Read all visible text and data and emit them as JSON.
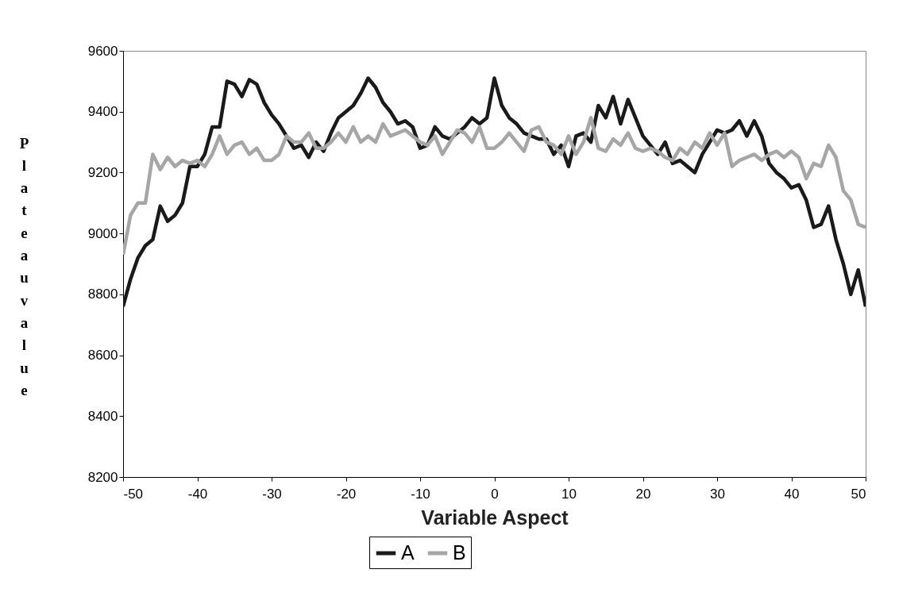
{
  "chart_data": {
    "type": "line",
    "xlabel": "Variable Aspect",
    "ylabel": "Plateau value",
    "xlim": [
      -50,
      50
    ],
    "xticks": [
      -50,
      -40,
      -30,
      -20,
      -10,
      0,
      10,
      20,
      30,
      40,
      50
    ],
    "ylim": [
      8200,
      9600
    ],
    "yticks": [
      8200,
      8400,
      8600,
      8800,
      9000,
      9200,
      9400,
      9600
    ],
    "grid": false,
    "legend": "bottom",
    "marker": "none",
    "line_style": "solid",
    "x": [
      -50,
      -49,
      -48,
      -47,
      -46,
      -45,
      -44,
      -43,
      -42,
      -41,
      -40,
      -39,
      -38,
      -37,
      -36,
      -35,
      -34,
      -33,
      -32,
      -31,
      -30,
      -29,
      -28,
      -27,
      -26,
      -25,
      -24,
      -23,
      -22,
      -21,
      -20,
      -19,
      -18,
      -17,
      -16,
      -15,
      -14,
      -13,
      -12,
      -11,
      -10,
      -9,
      -8,
      -7,
      -6,
      -5,
      -4,
      -3,
      -2,
      -1,
      0,
      1,
      2,
      3,
      4,
      5,
      6,
      7,
      8,
      9,
      10,
      11,
      12,
      13,
      14,
      15,
      16,
      17,
      18,
      19,
      20,
      21,
      22,
      23,
      24,
      25,
      26,
      27,
      28,
      29,
      30,
      31,
      32,
      33,
      34,
      35,
      36,
      37,
      38,
      39,
      40,
      41,
      42,
      43,
      44,
      45,
      46,
      47,
      48,
      49,
      50
    ],
    "series": [
      {
        "name": "A",
        "color": "#1a1a1a",
        "values": [
          8760,
          8850,
          8920,
          8960,
          8980,
          9090,
          9040,
          9060,
          9100,
          9220,
          9220,
          9260,
          9350,
          9350,
          9500,
          9490,
          9450,
          9505,
          9490,
          9430,
          9390,
          9360,
          9320,
          9280,
          9290,
          9250,
          9300,
          9270,
          9330,
          9380,
          9400,
          9420,
          9460,
          9510,
          9480,
          9430,
          9400,
          9360,
          9370,
          9350,
          9280,
          9290,
          9350,
          9320,
          9310,
          9330,
          9350,
          9380,
          9360,
          9380,
          9510,
          9420,
          9380,
          9360,
          9330,
          9320,
          9310,
          9310,
          9260,
          9290,
          9220,
          9320,
          9330,
          9300,
          9420,
          9380,
          9450,
          9360,
          9440,
          9380,
          9320,
          9290,
          9260,
          9300,
          9230,
          9240,
          9220,
          9200,
          9260,
          9300,
          9340,
          9330,
          9340,
          9370,
          9320,
          9370,
          9320,
          9230,
          9200,
          9180,
          9150,
          9160,
          9110,
          9020,
          9030,
          9090,
          8980,
          8900,
          8800,
          8880,
          8760
        ]
      },
      {
        "name": "B",
        "color": "#a6a6a6",
        "values": [
          8930,
          9060,
          9100,
          9100,
          9260,
          9210,
          9250,
          9220,
          9240,
          9230,
          9240,
          9220,
          9260,
          9320,
          9260,
          9290,
          9300,
          9260,
          9280,
          9240,
          9240,
          9260,
          9320,
          9300,
          9300,
          9330,
          9280,
          9280,
          9300,
          9330,
          9300,
          9350,
          9300,
          9320,
          9300,
          9360,
          9320,
          9330,
          9340,
          9320,
          9300,
          9290,
          9320,
          9260,
          9300,
          9340,
          9330,
          9300,
          9350,
          9280,
          9280,
          9300,
          9330,
          9300,
          9270,
          9340,
          9350,
          9300,
          9290,
          9260,
          9320,
          9260,
          9300,
          9380,
          9280,
          9270,
          9310,
          9290,
          9330,
          9280,
          9270,
          9280,
          9270,
          9250,
          9240,
          9280,
          9260,
          9300,
          9280,
          9330,
          9290,
          9330,
          9220,
          9240,
          9250,
          9260,
          9240,
          9260,
          9270,
          9250,
          9270,
          9250,
          9180,
          9230,
          9220,
          9290,
          9250,
          9140,
          9110,
          9030,
          9020
        ]
      }
    ]
  }
}
